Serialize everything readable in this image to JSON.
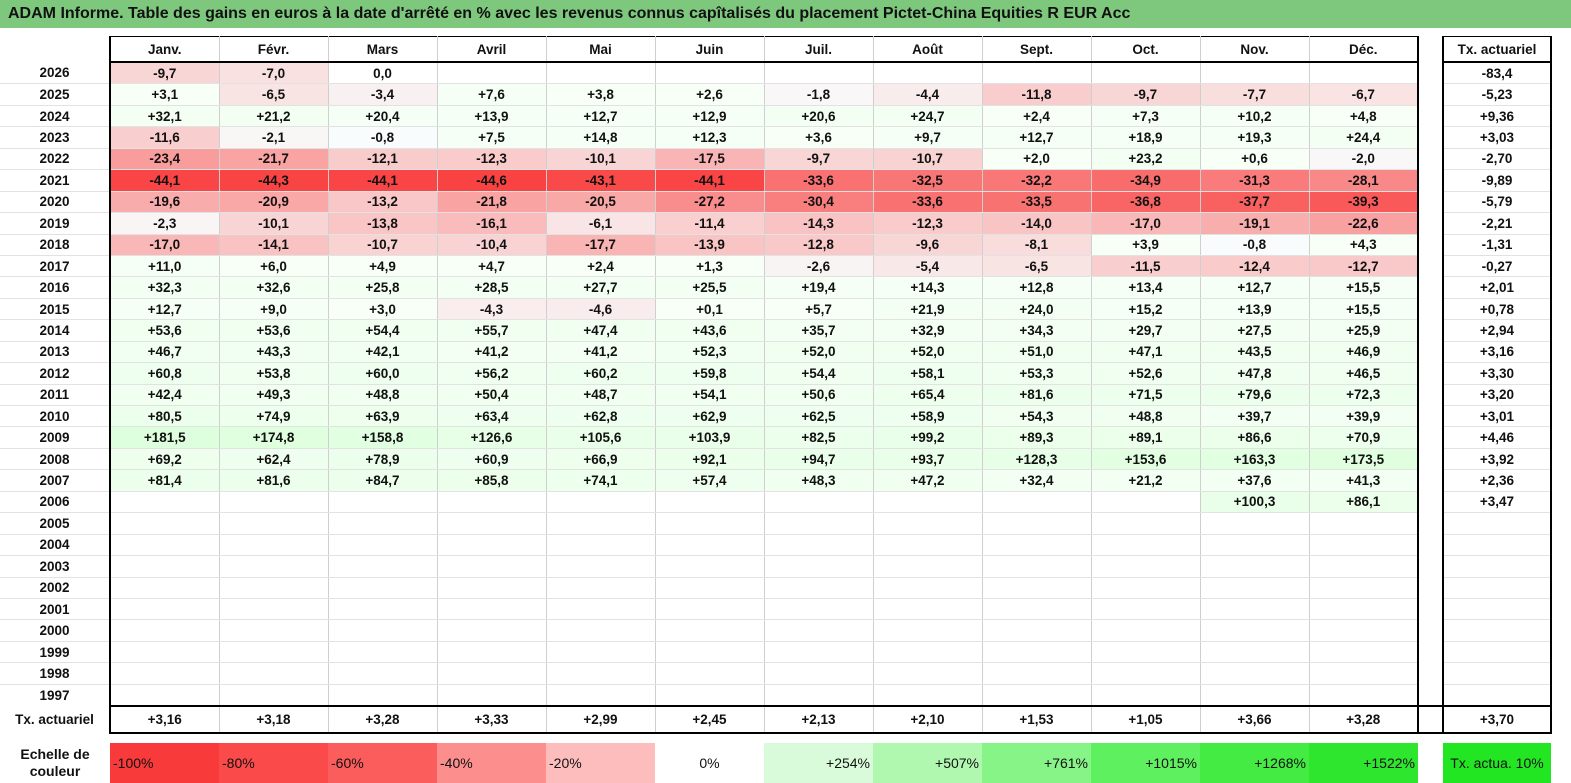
{
  "title": "ADAM Informe. Table des gains en euros à la date d'arrêté en % avec les revenus connus capîtalisés du placement Pictet-China Equities R EUR Acc",
  "months": [
    "Janv.",
    "Févr.",
    "Mars",
    "Avril",
    "Mai",
    "Juin",
    "Juil.",
    "Août",
    "Sept.",
    "Oct.",
    "Nov.",
    "Déc."
  ],
  "tx_header": "Tx. actuariel",
  "rows": [
    {
      "year": "2026",
      "values": [
        "-9,7",
        "-7,0",
        "0,0",
        "",
        "",
        "",
        "",
        "",
        "",
        "",
        "",
        ""
      ],
      "tx": "-83,4"
    },
    {
      "year": "2025",
      "values": [
        "+3,1",
        "-6,5",
        "-3,4",
        "+7,6",
        "+3,8",
        "+2,6",
        "-1,8",
        "-4,4",
        "-11,8",
        "-9,7",
        "-7,7",
        "-6,7"
      ],
      "tx": "-5,23"
    },
    {
      "year": "2024",
      "values": [
        "+32,1",
        "+21,2",
        "+20,4",
        "+13,9",
        "+12,7",
        "+12,9",
        "+20,6",
        "+24,7",
        "+2,4",
        "+7,3",
        "+10,2",
        "+4,8"
      ],
      "tx": "+9,36"
    },
    {
      "year": "2023",
      "values": [
        "-11,6",
        "-2,1",
        "-0,8",
        "+7,5",
        "+14,8",
        "+12,3",
        "+3,6",
        "+9,7",
        "+12,7",
        "+18,9",
        "+19,3",
        "+24,4"
      ],
      "tx": "+3,03"
    },
    {
      "year": "2022",
      "values": [
        "-23,4",
        "-21,7",
        "-12,1",
        "-12,3",
        "-10,1",
        "-17,5",
        "-9,7",
        "-10,7",
        "+2,0",
        "+23,2",
        "+0,6",
        "-2,0"
      ],
      "tx": "-2,70"
    },
    {
      "year": "2021",
      "values": [
        "-44,1",
        "-44,3",
        "-44,1",
        "-44,6",
        "-43,1",
        "-44,1",
        "-33,6",
        "-32,5",
        "-32,2",
        "-34,9",
        "-31,3",
        "-28,1"
      ],
      "tx": "-9,89"
    },
    {
      "year": "2020",
      "values": [
        "-19,6",
        "-20,9",
        "-13,2",
        "-21,8",
        "-20,5",
        "-27,2",
        "-30,4",
        "-33,6",
        "-33,5",
        "-36,8",
        "-37,7",
        "-39,3"
      ],
      "tx": "-5,79"
    },
    {
      "year": "2019",
      "values": [
        "-2,3",
        "-10,1",
        "-13,8",
        "-16,1",
        "-6,1",
        "-11,4",
        "-14,3",
        "-12,3",
        "-14,0",
        "-17,0",
        "-19,1",
        "-22,6"
      ],
      "tx": "-2,21"
    },
    {
      "year": "2018",
      "values": [
        "-17,0",
        "-14,1",
        "-10,7",
        "-10,4",
        "-17,7",
        "-13,9",
        "-12,8",
        "-9,6",
        "-8,1",
        "+3,9",
        "-0,8",
        "+4,3"
      ],
      "tx": "-1,31"
    },
    {
      "year": "2017",
      "values": [
        "+11,0",
        "+6,0",
        "+4,9",
        "+4,7",
        "+2,4",
        "+1,3",
        "-2,6",
        "-5,4",
        "-6,5",
        "-11,5",
        "-12,4",
        "-12,7"
      ],
      "tx": "-0,27"
    },
    {
      "year": "2016",
      "values": [
        "+32,3",
        "+32,6",
        "+25,8",
        "+28,5",
        "+27,7",
        "+25,5",
        "+19,4",
        "+14,3",
        "+12,8",
        "+13,4",
        "+12,7",
        "+15,5"
      ],
      "tx": "+2,01"
    },
    {
      "year": "2015",
      "values": [
        "+12,7",
        "+9,0",
        "+3,0",
        "-4,3",
        "-4,6",
        "+0,1",
        "+5,7",
        "+21,9",
        "+24,0",
        "+15,2",
        "+13,9",
        "+15,5"
      ],
      "tx": "+0,78"
    },
    {
      "year": "2014",
      "values": [
        "+53,6",
        "+53,6",
        "+54,4",
        "+55,7",
        "+47,4",
        "+43,6",
        "+35,7",
        "+32,9",
        "+34,3",
        "+29,7",
        "+27,5",
        "+25,9"
      ],
      "tx": "+2,94"
    },
    {
      "year": "2013",
      "values": [
        "+46,7",
        "+43,3",
        "+42,1",
        "+41,2",
        "+41,2",
        "+52,3",
        "+52,0",
        "+52,0",
        "+51,0",
        "+47,1",
        "+43,5",
        "+46,9"
      ],
      "tx": "+3,16"
    },
    {
      "year": "2012",
      "values": [
        "+60,8",
        "+53,8",
        "+60,0",
        "+56,2",
        "+60,2",
        "+59,8",
        "+54,4",
        "+58,1",
        "+53,3",
        "+52,6",
        "+47,8",
        "+46,5"
      ],
      "tx": "+3,30"
    },
    {
      "year": "2011",
      "values": [
        "+42,4",
        "+49,3",
        "+48,8",
        "+50,4",
        "+48,7",
        "+54,1",
        "+50,6",
        "+65,4",
        "+81,6",
        "+71,5",
        "+79,6",
        "+72,3"
      ],
      "tx": "+3,20"
    },
    {
      "year": "2010",
      "values": [
        "+80,5",
        "+74,9",
        "+63,9",
        "+63,4",
        "+62,8",
        "+62,9",
        "+62,5",
        "+58,9",
        "+54,3",
        "+48,8",
        "+39,7",
        "+39,9"
      ],
      "tx": "+3,01"
    },
    {
      "year": "2009",
      "values": [
        "+181,5",
        "+174,8",
        "+158,8",
        "+126,6",
        "+105,6",
        "+103,9",
        "+82,5",
        "+99,2",
        "+89,3",
        "+89,1",
        "+86,6",
        "+70,9"
      ],
      "tx": "+4,46"
    },
    {
      "year": "2008",
      "values": [
        "+69,2",
        "+62,4",
        "+78,9",
        "+60,9",
        "+66,9",
        "+92,1",
        "+94,7",
        "+93,7",
        "+128,3",
        "+153,6",
        "+163,3",
        "+173,5"
      ],
      "tx": "+3,92"
    },
    {
      "year": "2007",
      "values": [
        "+81,4",
        "+81,6",
        "+84,7",
        "+85,8",
        "+74,1",
        "+57,4",
        "+48,3",
        "+47,2",
        "+32,4",
        "+21,2",
        "+37,6",
        "+41,3"
      ],
      "tx": "+2,36"
    },
    {
      "year": "2006",
      "values": [
        "",
        "",
        "",
        "",
        "",
        "",
        "",
        "",
        "",
        "",
        "+100,3",
        "+86,1"
      ],
      "tx": "+3,47"
    },
    {
      "year": "2005",
      "values": [
        "",
        "",
        "",
        "",
        "",
        "",
        "",
        "",
        "",
        "",
        "",
        ""
      ],
      "tx": ""
    },
    {
      "year": "2004",
      "values": [
        "",
        "",
        "",
        "",
        "",
        "",
        "",
        "",
        "",
        "",
        "",
        ""
      ],
      "tx": ""
    },
    {
      "year": "2003",
      "values": [
        "",
        "",
        "",
        "",
        "",
        "",
        "",
        "",
        "",
        "",
        "",
        ""
      ],
      "tx": ""
    },
    {
      "year": "2002",
      "values": [
        "",
        "",
        "",
        "",
        "",
        "",
        "",
        "",
        "",
        "",
        "",
        ""
      ],
      "tx": ""
    },
    {
      "year": "2001",
      "values": [
        "",
        "",
        "",
        "",
        "",
        "",
        "",
        "",
        "",
        "",
        "",
        ""
      ],
      "tx": ""
    },
    {
      "year": "2000",
      "values": [
        "",
        "",
        "",
        "",
        "",
        "",
        "",
        "",
        "",
        "",
        "",
        ""
      ],
      "tx": ""
    },
    {
      "year": "1999",
      "values": [
        "",
        "",
        "",
        "",
        "",
        "",
        "",
        "",
        "",
        "",
        "",
        ""
      ],
      "tx": ""
    },
    {
      "year": "1998",
      "values": [
        "",
        "",
        "",
        "",
        "",
        "",
        "",
        "",
        "",
        "",
        "",
        ""
      ],
      "tx": ""
    },
    {
      "year": "1997",
      "values": [
        "",
        "",
        "",
        "",
        "",
        "",
        "",
        "",
        "",
        "",
        "",
        ""
      ],
      "tx": ""
    }
  ],
  "totals": {
    "label": "Tx. actuariel",
    "values": [
      "+3,16",
      "+3,18",
      "+3,28",
      "+3,33",
      "+2,99",
      "+2,45",
      "+2,13",
      "+2,10",
      "+1,53",
      "+1,05",
      "+3,66",
      "+3,28"
    ],
    "tx": "+3,70"
  },
  "scale": {
    "label": "Echelle de couleur",
    "items": [
      "-100%",
      "-80%",
      "-60%",
      "-40%",
      "-20%",
      "0%",
      "+254%",
      "+507%",
      "+761%",
      "+1015%",
      "+1268%",
      "+1522%"
    ],
    "colors": [
      "#f93a3a",
      "#fa4a4a",
      "#fb5c5c",
      "#fc8e8e",
      "#fdbdbd",
      "#ffffff",
      "#d9fbd9",
      "#b0f8b0",
      "#87f487",
      "#5ef05e",
      "#43eb43",
      "#2ee62e"
    ],
    "tx_label": "Tx. actua. 10%",
    "tx_color": "#22e622"
  },
  "colors": {
    "title_bg": "#7ec87e",
    "negative": "#f93a3a",
    "positive": "#2ee62e"
  }
}
